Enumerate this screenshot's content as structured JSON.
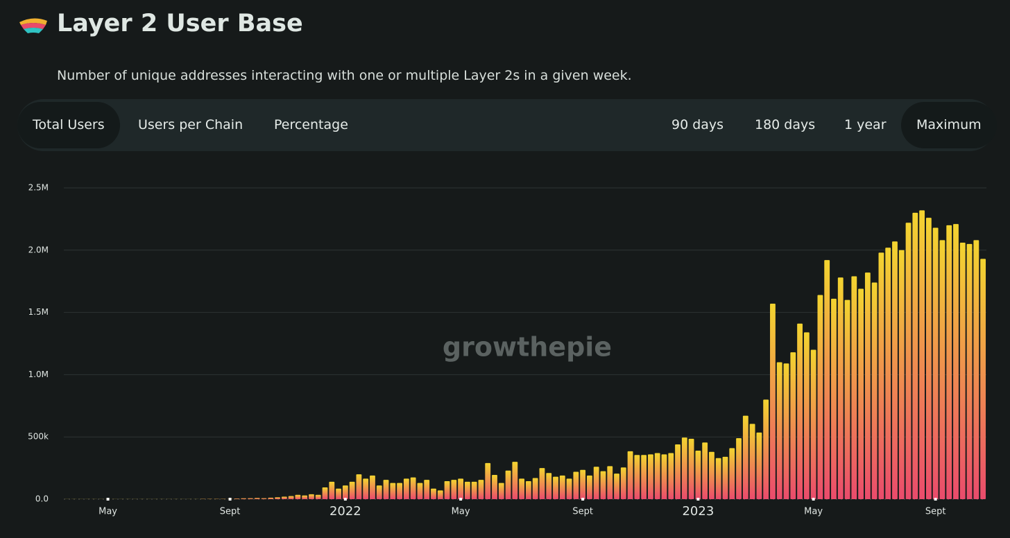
{
  "header": {
    "title": "Layer 2 User Base",
    "subtitle": "Number of unique addresses interacting with one or multiple Layer 2s in a given week."
  },
  "tabs": {
    "metrics": [
      "Total Users",
      "Users per Chain",
      "Percentage"
    ],
    "ranges": [
      "90 days",
      "180 days",
      "1 year",
      "Maximum"
    ],
    "active_metric": 0,
    "active_range": 3
  },
  "watermark": "growthepie",
  "chart_data": {
    "type": "bar",
    "categories": [
      null,
      null,
      null,
      null,
      null,
      null,
      "May",
      null,
      null,
      null,
      null,
      null,
      null,
      null,
      null,
      null,
      null,
      null,
      null,
      null,
      null,
      null,
      null,
      null,
      "Sept",
      null,
      null,
      null,
      null,
      null,
      null,
      null,
      null,
      null,
      null,
      null,
      null,
      null,
      null,
      null,
      null,
      "2022",
      null,
      null,
      null,
      null,
      null,
      null,
      null,
      null,
      null,
      null,
      null,
      null,
      null,
      null,
      null,
      null,
      "May",
      null,
      null,
      null,
      null,
      null,
      null,
      null,
      null,
      null,
      null,
      null,
      null,
      null,
      null,
      null,
      null,
      null,
      "Sept",
      null,
      null,
      null,
      null,
      null,
      null,
      null,
      null,
      null,
      null,
      null,
      null,
      null,
      null,
      null,
      null,
      "2023",
      null,
      null,
      null,
      null,
      null,
      null,
      null,
      null,
      null,
      null,
      null,
      null,
      null,
      null,
      null,
      null,
      "May",
      null,
      null,
      null,
      null,
      null,
      null,
      null,
      null,
      null,
      null,
      null,
      null,
      null,
      null,
      null,
      null,
      null,
      "Sept",
      null,
      null,
      null,
      null,
      null,
      null,
      null
    ],
    "values": [
      1000,
      1000,
      1000,
      1000,
      1000,
      1000,
      1000,
      1000,
      1000,
      1000,
      1000,
      1000,
      1000,
      1000,
      1000,
      1000,
      1000,
      1000,
      1000,
      1000,
      2000,
      2000,
      2000,
      2000,
      2000,
      5000,
      7000,
      8000,
      10000,
      8000,
      12000,
      15000,
      20000,
      25000,
      35000,
      30000,
      40000,
      35000,
      95000,
      140000,
      85000,
      110000,
      140000,
      200000,
      165000,
      190000,
      110000,
      155000,
      130000,
      130000,
      165000,
      175000,
      130000,
      155000,
      85000,
      70000,
      145000,
      155000,
      165000,
      140000,
      140000,
      155000,
      290000,
      195000,
      130000,
      230000,
      300000,
      165000,
      145000,
      170000,
      250000,
      210000,
      180000,
      190000,
      165000,
      220000,
      235000,
      190000,
      260000,
      225000,
      265000,
      205000,
      255000,
      385000,
      355000,
      355000,
      360000,
      370000,
      360000,
      370000,
      440000,
      495000,
      485000,
      390000,
      455000,
      380000,
      330000,
      340000,
      410000,
      490000,
      670000,
      605000,
      535000,
      800000,
      1570000,
      1100000,
      1090000,
      1180000,
      1410000,
      1340000,
      1200000,
      1640000,
      1920000,
      1610000,
      1780000,
      1600000,
      1790000,
      1690000,
      1820000,
      1740000,
      1980000,
      2020000,
      2070000,
      2000000,
      2220000,
      2300000,
      2320000,
      2260000,
      2180000,
      2080000,
      2200000,
      2210000,
      2060000,
      2050000,
      2080000,
      1930000
    ],
    "gradient": [
      "#f3d430",
      "#ea4b6c"
    ],
    "ylim": [
      0,
      2500000
    ],
    "yticks": [
      {
        "value": 0,
        "label": "0.0"
      },
      {
        "value": 500000,
        "label": "500k"
      },
      {
        "value": 1000000,
        "label": "1.0M"
      },
      {
        "value": 1500000,
        "label": "1.5M"
      },
      {
        "value": 2000000,
        "label": "2.0M"
      },
      {
        "value": 2500000,
        "label": "2.5M"
      }
    ],
    "grid": true
  }
}
